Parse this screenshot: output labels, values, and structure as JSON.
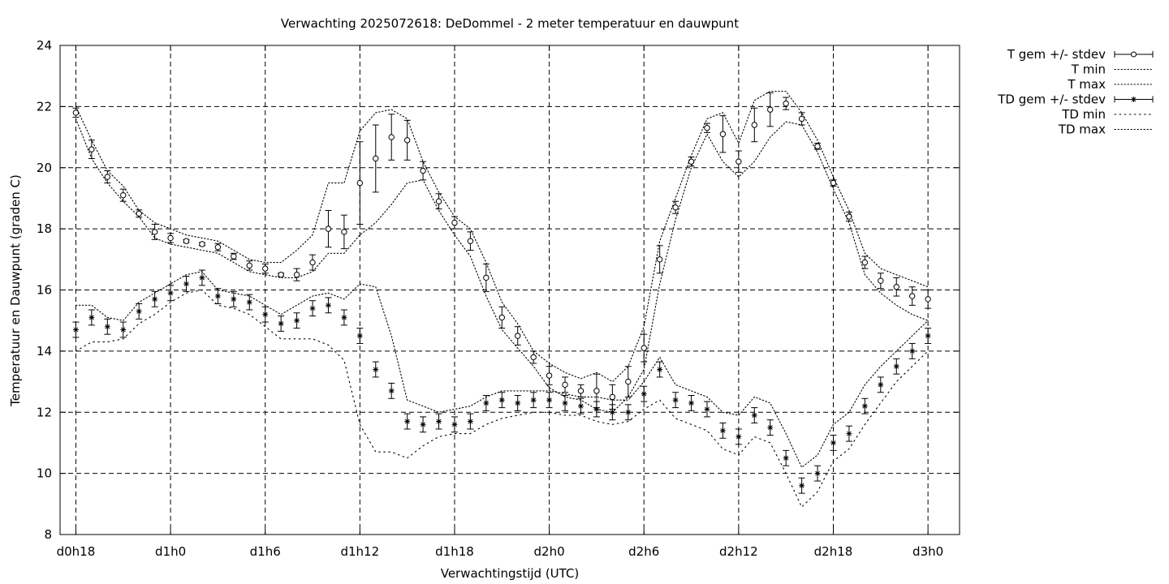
{
  "chart_data": {
    "type": "line",
    "title": "Verwachting 2025072618: DeDommel - 2 meter temperatuur en dauwpunt",
    "xlabel": "Verwachtingstijd (UTC)",
    "ylabel": "Temperatuur en Dauwpunt (graden C)",
    "x_unit": "hours",
    "xlim": [
      17,
      74
    ],
    "ylim": [
      8,
      24
    ],
    "yticks": [
      8,
      10,
      12,
      14,
      16,
      18,
      20,
      22,
      24
    ],
    "xticks": [
      {
        "x": 18,
        "label": "d0h18"
      },
      {
        "x": 24,
        "label": "d1h0"
      },
      {
        "x": 30,
        "label": "d1h6"
      },
      {
        "x": 36,
        "label": "d1h12"
      },
      {
        "x": 42,
        "label": "d1h18"
      },
      {
        "x": 48,
        "label": "d2h0"
      },
      {
        "x": 54,
        "label": "d2h6"
      },
      {
        "x": 60,
        "label": "d2h12"
      },
      {
        "x": 66,
        "label": "d2h18"
      },
      {
        "x": 72,
        "label": "d3h0"
      }
    ],
    "grid": true,
    "legend_position": "outside-top-right",
    "x": [
      18,
      19,
      20,
      21,
      22,
      23,
      24,
      25,
      26,
      27,
      28,
      29,
      30,
      31,
      32,
      33,
      34,
      35,
      36,
      37,
      38,
      39,
      40,
      41,
      42,
      43,
      44,
      45,
      46,
      47,
      48,
      49,
      50,
      51,
      52,
      53,
      54,
      55,
      56,
      57,
      58,
      59,
      60,
      61,
      62,
      63,
      64,
      65,
      66,
      67,
      68,
      69,
      70,
      71,
      72
    ],
    "series": [
      {
        "name": "T gem +/- stdev",
        "marker": "circle",
        "mean": [
          21.8,
          20.6,
          19.7,
          19.1,
          18.5,
          17.9,
          17.7,
          17.6,
          17.5,
          17.4,
          17.1,
          16.8,
          16.7,
          16.5,
          16.5,
          16.9,
          18.0,
          17.9,
          19.5,
          20.3,
          21.0,
          20.9,
          19.9,
          18.9,
          18.2,
          17.6,
          16.4,
          15.1,
          14.5,
          13.8,
          13.2,
          12.9,
          12.7,
          12.7,
          12.5,
          13.0,
          14.1,
          17.0,
          18.7,
          20.2,
          21.3,
          21.1,
          20.2,
          21.4,
          21.9,
          22.1,
          21.6,
          20.7,
          19.5,
          18.4,
          16.9,
          16.3,
          16.1,
          15.8,
          15.7
        ],
        "stdev": [
          0.15,
          0.3,
          0.2,
          0.2,
          0.12,
          0.25,
          0.15,
          0.05,
          0.05,
          0.12,
          0.1,
          0.15,
          0.15,
          0.05,
          0.2,
          0.25,
          0.6,
          0.55,
          1.35,
          1.1,
          0.75,
          0.65,
          0.3,
          0.25,
          0.2,
          0.3,
          0.45,
          0.35,
          0.3,
          0.2,
          0.3,
          0.25,
          0.2,
          0.55,
          0.4,
          0.5,
          0.45,
          0.45,
          0.2,
          0.15,
          0.15,
          0.6,
          0.35,
          0.55,
          0.55,
          0.2,
          0.2,
          0.1,
          0.1,
          0.15,
          0.2,
          0.25,
          0.3,
          0.3,
          0.3
        ]
      },
      {
        "name": "T min",
        "style": "dotted",
        "values": [
          21.6,
          20.3,
          19.5,
          18.9,
          18.4,
          17.7,
          17.5,
          17.4,
          17.3,
          17.2,
          16.9,
          16.6,
          16.5,
          16.4,
          16.4,
          16.6,
          17.2,
          17.2,
          17.8,
          18.2,
          18.8,
          19.5,
          19.6,
          18.6,
          17.8,
          17.1,
          15.8,
          14.7,
          14.1,
          13.5,
          12.8,
          12.5,
          12.4,
          12.1,
          12.0,
          12.5,
          13.4,
          16.2,
          18.3,
          20.0,
          21.1,
          20.2,
          19.7,
          20.2,
          21.0,
          21.5,
          21.4,
          20.5,
          19.3,
          18.2,
          16.5,
          15.9,
          15.5,
          15.2,
          15.0
        ]
      },
      {
        "name": "T max",
        "style": "dotted",
        "values": [
          22.0,
          20.9,
          19.9,
          19.4,
          18.6,
          18.2,
          18.0,
          17.8,
          17.7,
          17.6,
          17.3,
          17.0,
          16.9,
          16.9,
          17.3,
          17.8,
          19.5,
          19.5,
          21.2,
          21.8,
          21.9,
          21.6,
          20.2,
          19.2,
          18.4,
          18.0,
          16.9,
          15.6,
          14.9,
          14.0,
          13.6,
          13.3,
          13.1,
          13.3,
          13.0,
          13.5,
          14.8,
          17.6,
          19.0,
          20.4,
          21.6,
          21.8,
          20.8,
          22.2,
          22.5,
          22.5,
          21.8,
          20.9,
          19.7,
          18.6,
          17.2,
          16.7,
          16.5,
          16.3,
          16.1
        ]
      },
      {
        "name": "TD gem +/- stdev",
        "marker": "star",
        "mean": [
          14.7,
          15.1,
          14.8,
          14.7,
          15.3,
          15.7,
          15.9,
          16.2,
          16.4,
          15.8,
          15.7,
          15.6,
          15.2,
          14.9,
          15.0,
          15.4,
          15.5,
          15.1,
          14.5,
          13.4,
          12.7,
          11.7,
          11.6,
          11.7,
          11.6,
          11.7,
          12.3,
          12.4,
          12.3,
          12.4,
          12.4,
          12.3,
          12.2,
          12.1,
          12.0,
          12.0,
          12.6,
          13.4,
          12.4,
          12.3,
          12.1,
          11.4,
          11.2,
          11.9,
          11.5,
          10.5,
          9.6,
          10.0,
          11.0,
          11.3,
          12.2,
          12.9,
          13.5,
          14.0,
          14.5
        ]
      },
      {
        "name": "TD min",
        "style": "dotted-sparse",
        "values": [
          14.0,
          14.3,
          14.3,
          14.4,
          14.9,
          15.2,
          15.6,
          15.9,
          16.0,
          15.5,
          15.4,
          15.2,
          14.8,
          14.4,
          14.4,
          14.4,
          14.2,
          13.7,
          11.6,
          10.7,
          10.7,
          10.5,
          10.9,
          11.2,
          11.3,
          11.3,
          11.6,
          11.8,
          11.9,
          12.0,
          12.0,
          11.9,
          11.9,
          11.7,
          11.6,
          11.7,
          12.1,
          12.4,
          11.8,
          11.6,
          11.4,
          10.8,
          10.6,
          11.2,
          11.0,
          10.0,
          8.9,
          9.4,
          10.4,
          10.8,
          11.6,
          12.3,
          13.0,
          13.5,
          14.0
        ]
      },
      {
        "name": "TD max",
        "style": "dotted",
        "values": [
          15.5,
          15.5,
          15.1,
          15.0,
          15.6,
          15.9,
          16.2,
          16.5,
          16.6,
          16.0,
          15.9,
          15.8,
          15.5,
          15.2,
          15.5,
          15.8,
          15.9,
          15.7,
          16.2,
          16.1,
          14.5,
          12.4,
          12.2,
          12.0,
          12.1,
          12.2,
          12.5,
          12.7,
          12.7,
          12.7,
          12.7,
          12.6,
          12.5,
          12.5,
          12.4,
          12.4,
          13.0,
          13.8,
          12.9,
          12.7,
          12.5,
          12.0,
          11.9,
          12.5,
          12.3,
          11.3,
          10.2,
          10.6,
          11.6,
          12.0,
          12.9,
          13.5,
          14.0,
          14.5,
          15.0
        ]
      }
    ]
  }
}
